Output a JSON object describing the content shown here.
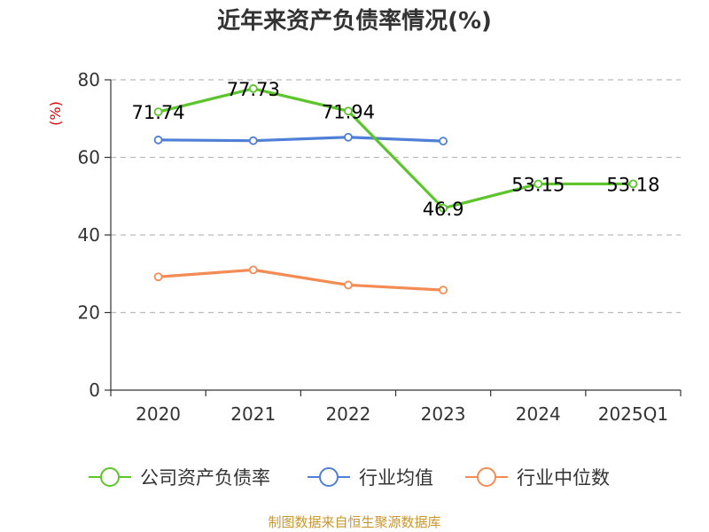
{
  "chart_data": {
    "type": "line",
    "title": "近年来资产负债率情况(%)",
    "ylabel": "(%)",
    "categories": [
      "2020",
      "2021",
      "2022",
      "2023",
      "2024",
      "2025Q1"
    ],
    "yticks": [
      0,
      20,
      40,
      60,
      80
    ],
    "ylim": [
      0,
      80
    ],
    "grid": true,
    "legend_position": "bottom",
    "series": [
      {
        "name": "公司资产负债率",
        "color": "#5cc52b",
        "values": [
          71.74,
          77.73,
          71.94,
          46.9,
          53.15,
          53.18
        ],
        "labels": [
          "71.74",
          "77.73",
          "71.94",
          "46.9",
          "53.15",
          "53.18"
        ]
      },
      {
        "name": "行业均值",
        "color": "#4f7fd6",
        "values": [
          64.5,
          64.3,
          65.2,
          64.2,
          null,
          null
        ]
      },
      {
        "name": "行业中位数",
        "color": "#f58b54",
        "values": [
          29.2,
          31.0,
          27.1,
          25.8,
          null,
          null
        ]
      }
    ]
  },
  "source": "制图数据来自恒生聚源数据库"
}
